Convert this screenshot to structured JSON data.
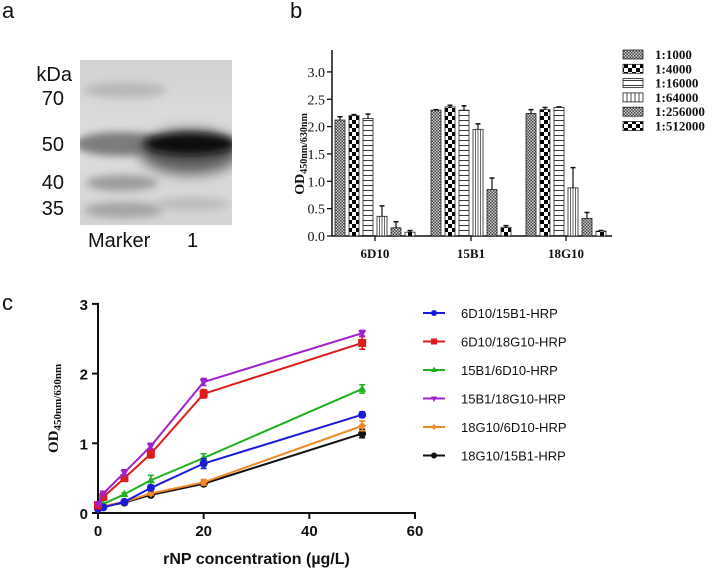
{
  "panels": {
    "a": {
      "letter": "a",
      "unit_label": "kDa",
      "marker_labels": [
        "70",
        "50",
        "40",
        "35"
      ],
      "lane_labels": [
        "Marker",
        "1"
      ]
    },
    "b": {
      "letter": "b"
    },
    "c": {
      "letter": "c"
    }
  },
  "chart_data": [
    {
      "id": "panel-a",
      "type": "gel",
      "title": "",
      "annotations": [
        "kDa",
        "70",
        "50",
        "40",
        "35"
      ],
      "lanes": [
        "Marker",
        "1"
      ],
      "bands": {
        "Marker": [
          "70",
          "50",
          "40",
          "35"
        ],
        "1": [
          "~50 (strong)"
        ]
      }
    },
    {
      "id": "panel-b",
      "type": "bar",
      "title": "",
      "xlabel": "",
      "ylabel": "OD450nm/630nm",
      "ylabel_main": "OD",
      "ylabel_sub": "450nm/630nm",
      "ylim": [
        0,
        3.3
      ],
      "yticks": [
        "0.0",
        "0.5",
        "1.0",
        "1.5",
        "2.0",
        "2.5",
        "3.0"
      ],
      "grid": false,
      "legend_position": "right",
      "categories": [
        "6D10",
        "15B1",
        "18G10"
      ],
      "series": [
        {
          "name": "1:1000",
          "pattern": "fine-check",
          "values": [
            2.12,
            2.3,
            2.24
          ],
          "errors": [
            0.06,
            0.01,
            0.07
          ]
        },
        {
          "name": "1:4000",
          "pattern": "coarse-check",
          "values": [
            2.2,
            2.36,
            2.31
          ],
          "errors": [
            0.02,
            0.03,
            0.04
          ]
        },
        {
          "name": "1:16000",
          "pattern": "horizontal",
          "values": [
            2.15,
            2.3,
            2.35
          ],
          "errors": [
            0.08,
            0.08,
            0.01
          ]
        },
        {
          "name": "1:64000",
          "pattern": "vertical",
          "values": [
            0.36,
            1.95,
            0.88
          ],
          "errors": [
            0.19,
            0.1,
            0.37
          ]
        },
        {
          "name": "1:256000",
          "pattern": "fine-check",
          "values": [
            0.15,
            0.85,
            0.32
          ],
          "errors": [
            0.11,
            0.21,
            0.11
          ]
        },
        {
          "name": "1:512000",
          "pattern": "coarse-check",
          "values": [
            0.07,
            0.16,
            0.09
          ],
          "errors": [
            0.03,
            0.03,
            0.01
          ]
        }
      ]
    },
    {
      "id": "panel-c",
      "type": "line",
      "title": "",
      "xlabel": "rNP concentration (µg/L)",
      "ylabel": "OD450nm/630nm",
      "ylabel_main": "OD",
      "ylabel_sub": "450nm/630nm",
      "xlim": [
        0,
        60
      ],
      "ylim": [
        0,
        3
      ],
      "xticks": [
        "0",
        "20",
        "40",
        "60"
      ],
      "yticks": [
        "0",
        "1",
        "2",
        "3"
      ],
      "grid": false,
      "legend_position": "right",
      "x": [
        0,
        1,
        5,
        10,
        20,
        50
      ],
      "series": [
        {
          "name": "6D10/15B1-HRP",
          "color": "#1a1adb",
          "marker": "circle",
          "values": [
            0.06,
            0.08,
            0.16,
            0.36,
            0.71,
            1.41
          ],
          "errors": [
            0.01,
            0.01,
            0.02,
            0.04,
            0.07,
            0.04
          ]
        },
        {
          "name": "6D10/18G10-HRP",
          "color": "#e01b1b",
          "marker": "square",
          "values": [
            0.11,
            0.23,
            0.5,
            0.85,
            1.71,
            2.44
          ],
          "errors": [
            0.01,
            0.03,
            0.04,
            0.06,
            0.06,
            0.09
          ]
        },
        {
          "name": "15B1/6D10-HRP",
          "color": "#22b022",
          "marker": "triangle-up",
          "values": [
            0.08,
            0.13,
            0.27,
            0.47,
            0.79,
            1.78
          ],
          "errors": [
            0.01,
            0.02,
            0.02,
            0.07,
            0.06,
            0.06
          ]
        },
        {
          "name": "15B1/18G10-HRP",
          "color": "#a020d0",
          "marker": "triangle-down",
          "values": [
            0.13,
            0.28,
            0.58,
            0.96,
            1.88,
            2.58
          ],
          "errors": [
            0.01,
            0.02,
            0.04,
            0.04,
            0.05,
            0.04
          ]
        },
        {
          "name": "18G10/6D10-HRP",
          "color": "#f0892a",
          "marker": "diamond",
          "values": [
            0.07,
            0.1,
            0.16,
            0.28,
            0.44,
            1.25
          ],
          "errors": [
            0.01,
            0.01,
            0.01,
            0.02,
            0.04,
            0.07
          ]
        },
        {
          "name": "18G10/15B1-HRP",
          "color": "#111111",
          "marker": "circle",
          "values": [
            0.06,
            0.09,
            0.15,
            0.26,
            0.42,
            1.14
          ],
          "errors": [
            0.01,
            0.01,
            0.01,
            0.02,
            0.03,
            0.06
          ]
        }
      ]
    }
  ]
}
